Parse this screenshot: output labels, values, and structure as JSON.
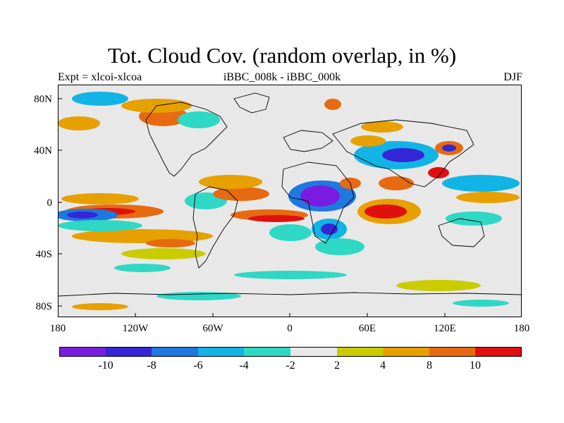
{
  "title": "Tot. Cloud Cov. (random overlap, in %)",
  "subtitle_left": "Expt = xlcoi-xlcoa",
  "subtitle_center": "iBBC_008k - iBBC_000k",
  "subtitle_right": "DJF",
  "lat_labels": [
    "80N",
    "40N",
    "0",
    "40S",
    "80S"
  ],
  "lon_labels": [
    "180",
    "120W",
    "60W",
    "0",
    "60E",
    "120E",
    "180"
  ],
  "colorbar": {
    "labels": [
      "-10",
      "-8",
      "-6",
      "-4",
      "-2",
      "2",
      "4",
      "8",
      "10"
    ],
    "colors": [
      "#7a1de0",
      "#3527d8",
      "#1e78e0",
      "#12b4e6",
      "#2ed8c4",
      "#e8e8e8",
      "#c9cc00",
      "#e6a000",
      "#e86a10",
      "#e01010"
    ]
  },
  "colors": {
    "background": "#e8e8e8",
    "coast": "#000000"
  }
}
